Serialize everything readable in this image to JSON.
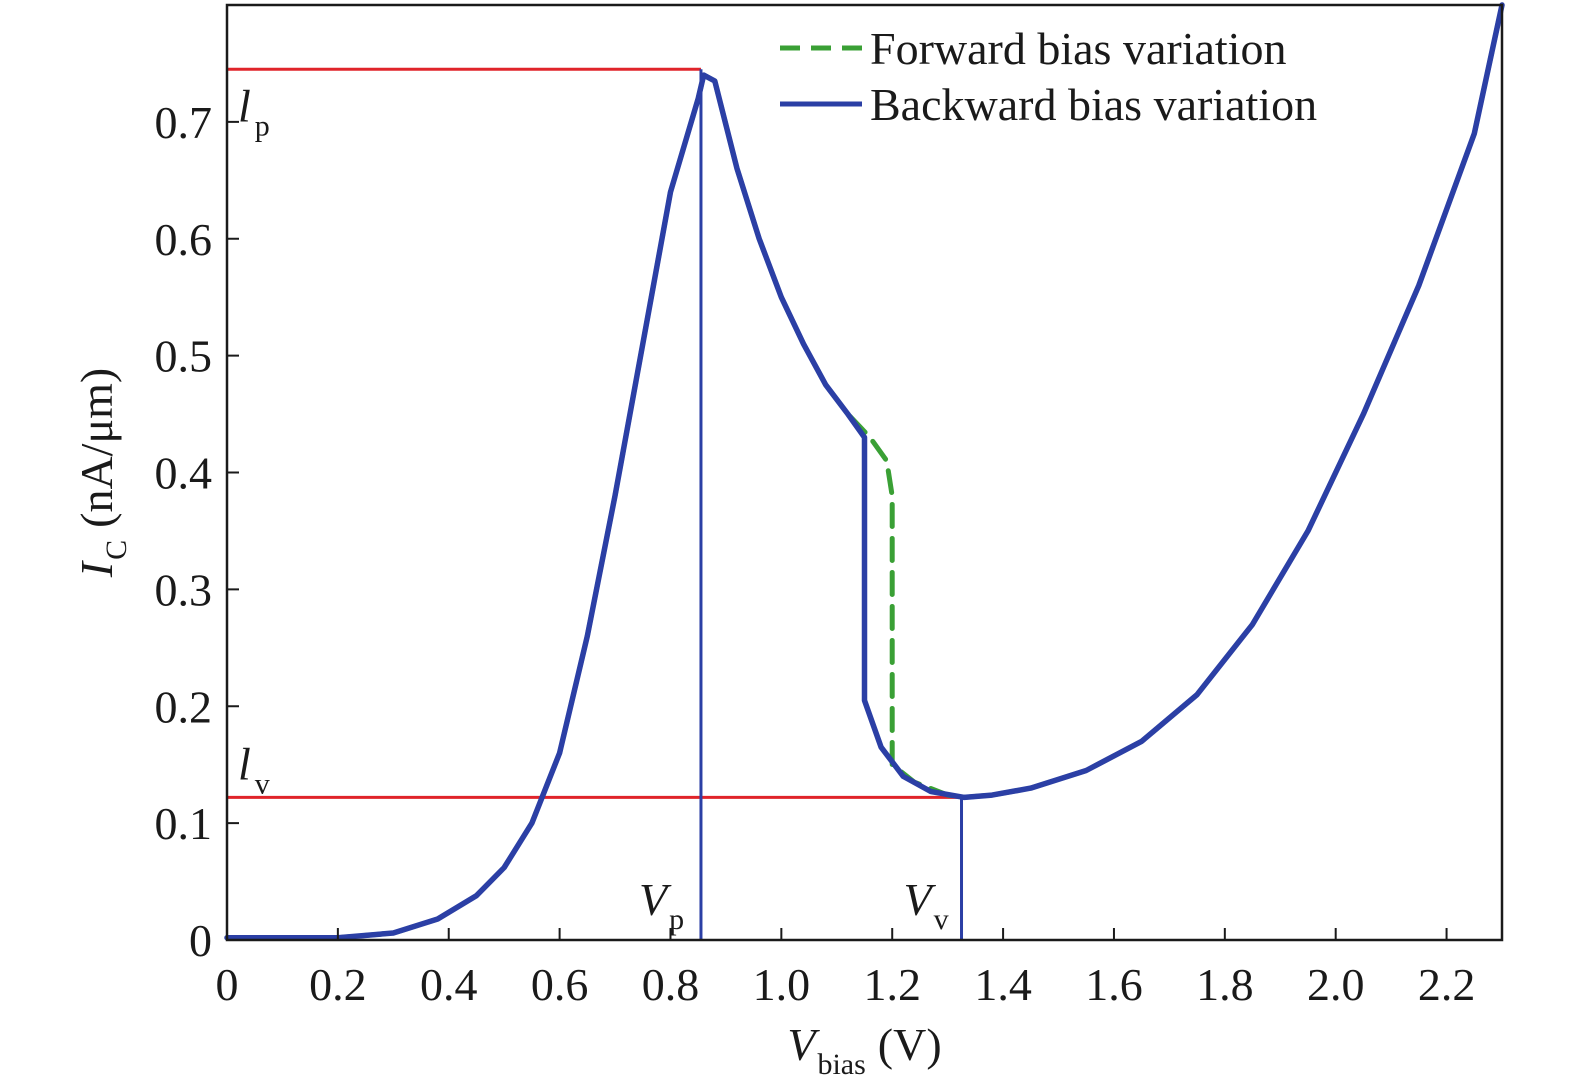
{
  "chart_data": {
    "type": "line",
    "title": "",
    "xlabel": {
      "main": "V",
      "sub": "bias",
      "unit": "(V)"
    },
    "ylabel": {
      "main": "I",
      "sub": "C",
      "unit": "(nA/μm)"
    },
    "xlim": [
      0,
      2.3
    ],
    "ylim": [
      0,
      0.8
    ],
    "xticks": [
      0,
      0.2,
      0.4,
      0.6,
      0.8,
      1.0,
      1.2,
      1.4,
      1.6,
      1.8,
      2.0,
      2.2
    ],
    "xtick_labels": [
      "0",
      "0.2",
      "0.4",
      "0.6",
      "0.8",
      "1.0",
      "1.2",
      "1.4",
      "1.6",
      "1.8",
      "2.0",
      "2.2"
    ],
    "yticks": [
      0,
      0.1,
      0.2,
      0.3,
      0.4,
      0.5,
      0.6,
      0.7
    ],
    "ytick_labels": [
      "0",
      "0.1",
      "0.2",
      "0.3",
      "0.4",
      "0.5",
      "0.6",
      "0.7"
    ],
    "legend_position": "top-right",
    "series": [
      {
        "name": "Forward bias variation",
        "color": "#3aa035",
        "style": "dashed",
        "points": [
          [
            0,
            0.002
          ],
          [
            0.2,
            0.002
          ],
          [
            0.3,
            0.006
          ],
          [
            0.38,
            0.018
          ],
          [
            0.45,
            0.038
          ],
          [
            0.5,
            0.062
          ],
          [
            0.55,
            0.1
          ],
          [
            0.6,
            0.16
          ],
          [
            0.65,
            0.26
          ],
          [
            0.7,
            0.38
          ],
          [
            0.75,
            0.51
          ],
          [
            0.8,
            0.64
          ],
          [
            0.85,
            0.72
          ],
          [
            0.86,
            0.74
          ],
          [
            0.88,
            0.735
          ],
          [
            0.92,
            0.66
          ],
          [
            0.96,
            0.6
          ],
          [
            1.0,
            0.55
          ],
          [
            1.04,
            0.51
          ],
          [
            1.08,
            0.475
          ],
          [
            1.12,
            0.45
          ],
          [
            1.16,
            0.43
          ],
          [
            1.19,
            0.41
          ],
          [
            1.2,
            0.38
          ],
          [
            1.2,
            0.3
          ],
          [
            1.2,
            0.22
          ],
          [
            1.2,
            0.15
          ],
          [
            1.24,
            0.135
          ],
          [
            1.3,
            0.124
          ],
          [
            1.33,
            0.122
          ],
          [
            1.38,
            0.124
          ],
          [
            1.45,
            0.13
          ],
          [
            1.55,
            0.145
          ],
          [
            1.65,
            0.17
          ],
          [
            1.75,
            0.21
          ],
          [
            1.85,
            0.27
          ],
          [
            1.95,
            0.35
          ],
          [
            2.05,
            0.45
          ],
          [
            2.15,
            0.56
          ],
          [
            2.25,
            0.69
          ],
          [
            2.3,
            0.8
          ]
        ]
      },
      {
        "name": "Backward bias variation",
        "color": "#2b3fa5",
        "style": "solid",
        "points": [
          [
            0,
            0.002
          ],
          [
            0.2,
            0.002
          ],
          [
            0.3,
            0.006
          ],
          [
            0.38,
            0.018
          ],
          [
            0.45,
            0.038
          ],
          [
            0.5,
            0.062
          ],
          [
            0.55,
            0.1
          ],
          [
            0.6,
            0.16
          ],
          [
            0.65,
            0.26
          ],
          [
            0.7,
            0.38
          ],
          [
            0.75,
            0.51
          ],
          [
            0.8,
            0.64
          ],
          [
            0.85,
            0.72
          ],
          [
            0.86,
            0.74
          ],
          [
            0.88,
            0.735
          ],
          [
            0.92,
            0.66
          ],
          [
            0.96,
            0.6
          ],
          [
            1.0,
            0.55
          ],
          [
            1.04,
            0.51
          ],
          [
            1.08,
            0.475
          ],
          [
            1.12,
            0.45
          ],
          [
            1.15,
            0.43
          ],
          [
            1.15,
            0.3
          ],
          [
            1.15,
            0.205
          ],
          [
            1.18,
            0.165
          ],
          [
            1.22,
            0.14
          ],
          [
            1.27,
            0.127
          ],
          [
            1.33,
            0.122
          ],
          [
            1.38,
            0.124
          ],
          [
            1.45,
            0.13
          ],
          [
            1.55,
            0.145
          ],
          [
            1.65,
            0.17
          ],
          [
            1.75,
            0.21
          ],
          [
            1.85,
            0.27
          ],
          [
            1.95,
            0.35
          ],
          [
            2.05,
            0.45
          ],
          [
            2.15,
            0.56
          ],
          [
            2.25,
            0.69
          ],
          [
            2.3,
            0.8
          ]
        ]
      }
    ],
    "reference_lines": {
      "ip_y": 0.745,
      "iv_y": 0.122,
      "vp_x": 0.855,
      "vv_x": 1.325,
      "h_color": "#e0242a",
      "v_color": "#2b3fa5"
    },
    "annotations": {
      "ip": {
        "main": "l",
        "sub": "p"
      },
      "iv": {
        "main": "l",
        "sub": "v"
      },
      "vp": {
        "main": "V",
        "sub": "p"
      },
      "vv": {
        "main": "V",
        "sub": "v"
      }
    }
  }
}
